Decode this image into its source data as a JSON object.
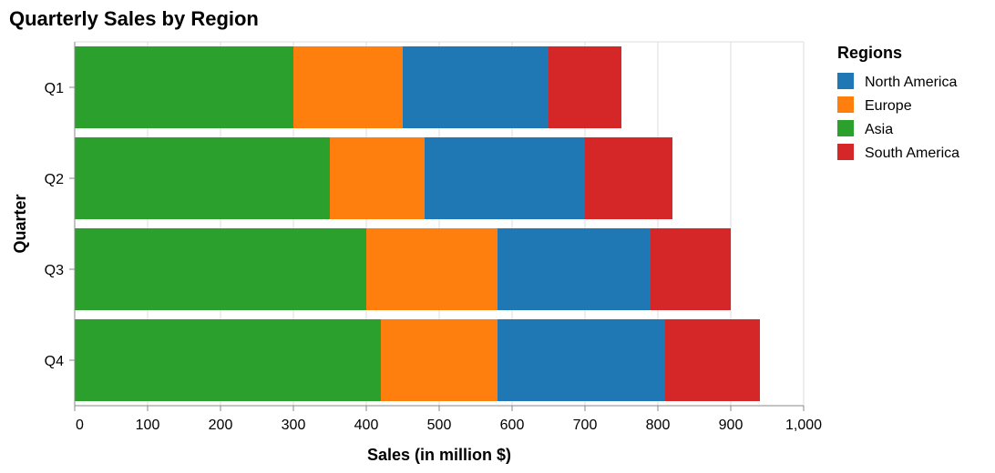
{
  "chart_data": {
    "type": "bar",
    "orientation": "horizontal",
    "stacked": true,
    "title": "Quarterly Sales by Region",
    "xlabel": "Sales (in million $)",
    "ylabel": "Quarter",
    "xlim": [
      0,
      1000
    ],
    "xticks": [
      "0",
      "100",
      "200",
      "300",
      "400",
      "500",
      "600",
      "700",
      "800",
      "900",
      "1,000"
    ],
    "categories": [
      "Q1",
      "Q2",
      "Q3",
      "Q4"
    ],
    "grid": true,
    "legend_title": "Regions",
    "legend_position": "right",
    "stack_order": [
      "Asia",
      "Europe",
      "North America",
      "South America"
    ],
    "series": [
      {
        "name": "North America",
        "color": "#1f77b4",
        "values": [
          200,
          220,
          210,
          230
        ]
      },
      {
        "name": "Europe",
        "color": "#ff7f0e",
        "values": [
          150,
          130,
          180,
          160
        ]
      },
      {
        "name": "Asia",
        "color": "#2ca02c",
        "values": [
          300,
          350,
          400,
          420
        ]
      },
      {
        "name": "South America",
        "color": "#d62728",
        "values": [
          100,
          120,
          110,
          130
        ]
      }
    ]
  }
}
